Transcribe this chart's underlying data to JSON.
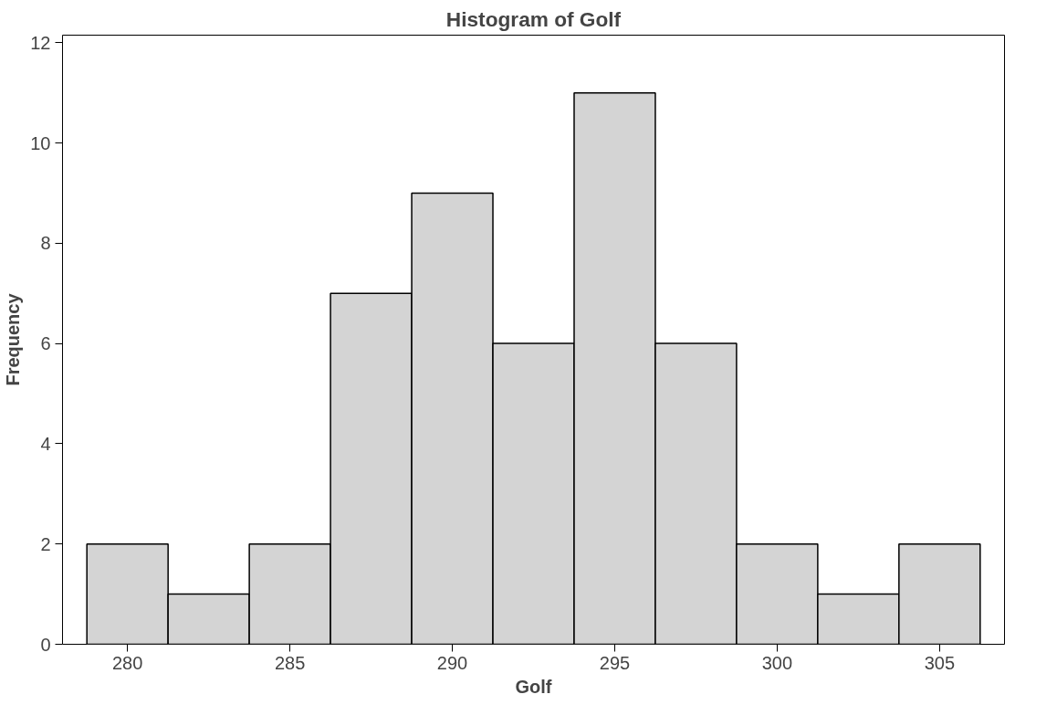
{
  "chart_data": {
    "type": "histogram",
    "title": "Histogram of Golf",
    "xlabel": "Golf",
    "ylabel": "Frequency",
    "bins": [
      278.75,
      281.25,
      283.75,
      286.25,
      288.75,
      291.25,
      293.75,
      296.25,
      298.75,
      301.25,
      303.75,
      306.25
    ],
    "values": [
      2,
      1,
      2,
      7,
      9,
      6,
      11,
      6,
      2,
      1,
      2
    ],
    "color": "#d4d4d4",
    "xlim": [
      278,
      307
    ],
    "xticks": [
      280,
      285,
      290,
      295,
      300,
      305
    ],
    "ylim": [
      0,
      12.15
    ],
    "yticks": [
      0,
      2,
      4,
      6,
      8,
      10,
      12
    ],
    "grid": false
  }
}
